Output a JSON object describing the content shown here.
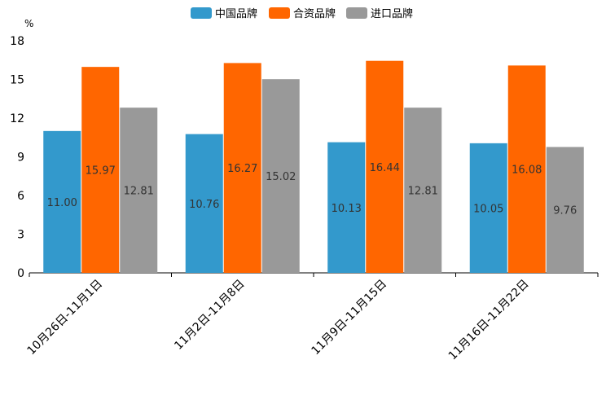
{
  "chart_data": {
    "type": "bar",
    "unit": "%",
    "categories": [
      "10月26日-11月1日",
      "11月2日-11月8日",
      "11月9日-11月15日",
      "11月16日-11月22日"
    ],
    "series": [
      {
        "name": "中国品牌",
        "color": "#3399cc",
        "values": [
          11.0,
          10.76,
          10.13,
          10.05
        ],
        "labels": [
          "11.00",
          "10.76",
          "10.13",
          "10.05"
        ]
      },
      {
        "name": "合资品牌",
        "color": "#ff6600",
        "values": [
          15.97,
          16.27,
          16.44,
          16.08
        ],
        "labels": [
          "15.97",
          "16.27",
          "16.44",
          "16.08"
        ]
      },
      {
        "name": "进口品牌",
        "color": "#999999",
        "values": [
          12.81,
          15.02,
          12.81,
          9.76
        ],
        "labels": [
          "12.81",
          "15.02",
          "12.81",
          "9.76"
        ]
      }
    ],
    "y_ticks": [
      "0",
      "3",
      "6",
      "9",
      "12",
      "15",
      "18"
    ],
    "ylim": [
      0,
      18
    ],
    "legend_position": "top-center"
  }
}
